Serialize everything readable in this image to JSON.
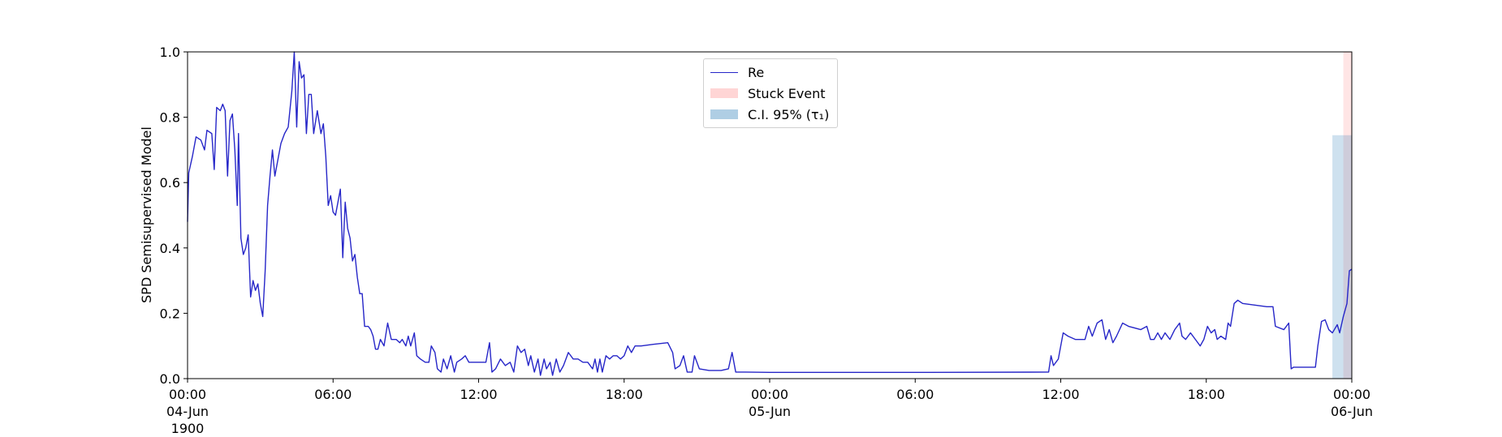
{
  "chart_data": {
    "type": "line",
    "ylabel": "SPD Semisupervised Model",
    "x": [
      "1900-06-04 00:00",
      "1900-06-04 00:03",
      "1900-06-04 00:12",
      "1900-06-04 00:21",
      "1900-06-04 00:33",
      "1900-06-04 00:42",
      "1900-06-04 00:48",
      "1900-06-04 01:00",
      "1900-06-04 01:06",
      "1900-06-04 01:12",
      "1900-06-04 01:21",
      "1900-06-04 01:27",
      "1900-06-04 01:33",
      "1900-06-04 01:39",
      "1900-06-04 01:45",
      "1900-06-04 01:51",
      "1900-06-04 01:57",
      "1900-06-04 02:03",
      "1900-06-04 02:06",
      "1900-06-04 02:12",
      "1900-06-04 02:18",
      "1900-06-04 02:24",
      "1900-06-04 02:30",
      "1900-06-04 02:36",
      "1900-06-04 02:42",
      "1900-06-04 02:48",
      "1900-06-04 02:54",
      "1900-06-04 03:00",
      "1900-06-04 03:06",
      "1900-06-04 03:12",
      "1900-06-04 03:18",
      "1900-06-04 03:24",
      "1900-06-04 03:30",
      "1900-06-04 03:36",
      "1900-06-04 03:42",
      "1900-06-04 03:51",
      "1900-06-04 04:00",
      "1900-06-04 04:09",
      "1900-06-04 04:18",
      "1900-06-04 04:24",
      "1900-06-04 04:30",
      "1900-06-04 04:36",
      "1900-06-04 04:42",
      "1900-06-04 04:48",
      "1900-06-04 04:54",
      "1900-06-04 05:00",
      "1900-06-04 05:06",
      "1900-06-04 05:12",
      "1900-06-04 05:21",
      "1900-06-04 05:30",
      "1900-06-04 05:36",
      "1900-06-04 05:42",
      "1900-06-04 05:48",
      "1900-06-04 05:54",
      "1900-06-04 06:00",
      "1900-06-04 06:06",
      "1900-06-04 06:12",
      "1900-06-04 06:18",
      "1900-06-04 06:24",
      "1900-06-04 06:30",
      "1900-06-04 06:36",
      "1900-06-04 06:42",
      "1900-06-04 06:48",
      "1900-06-04 06:54",
      "1900-06-04 07:00",
      "1900-06-04 07:06",
      "1900-06-04 07:12",
      "1900-06-04 07:18",
      "1900-06-04 07:27",
      "1900-06-04 07:33",
      "1900-06-04 07:39",
      "1900-06-04 07:45",
      "1900-06-04 07:51",
      "1900-06-04 07:57",
      "1900-06-04 08:06",
      "1900-06-04 08:15",
      "1900-06-04 08:24",
      "1900-06-04 08:36",
      "1900-06-04 08:45",
      "1900-06-04 08:51",
      "1900-06-04 09:00",
      "1900-06-04 09:06",
      "1900-06-04 09:12",
      "1900-06-04 09:21",
      "1900-06-04 09:27",
      "1900-06-04 09:36",
      "1900-06-04 09:48",
      "1900-06-04 09:57",
      "1900-06-04 10:03",
      "1900-06-04 10:12",
      "1900-06-04 10:18",
      "1900-06-04 10:27",
      "1900-06-04 10:33",
      "1900-06-04 10:42",
      "1900-06-04 10:51",
      "1900-06-04 11:00",
      "1900-06-04 11:06",
      "1900-06-04 11:18",
      "1900-06-04 11:27",
      "1900-06-04 11:36",
      "1900-06-04 12:00",
      "1900-06-04 12:18",
      "1900-06-04 12:27",
      "1900-06-04 12:33",
      "1900-06-04 12:42",
      "1900-06-04 12:54",
      "1900-06-04 13:06",
      "1900-06-04 13:18",
      "1900-06-04 13:27",
      "1900-06-04 13:36",
      "1900-06-04 13:45",
      "1900-06-04 13:54",
      "1900-06-04 14:03",
      "1900-06-04 14:09",
      "1900-06-04 14:18",
      "1900-06-04 14:27",
      "1900-06-04 14:33",
      "1900-06-04 14:42",
      "1900-06-04 14:48",
      "1900-06-04 14:57",
      "1900-06-04 15:03",
      "1900-06-04 15:12",
      "1900-06-04 15:21",
      "1900-06-04 15:30",
      "1900-06-04 15:42",
      "1900-06-04 15:54",
      "1900-06-04 16:06",
      "1900-06-04 16:18",
      "1900-06-04 16:30",
      "1900-06-04 16:42",
      "1900-06-04 16:48",
      "1900-06-04 16:54",
      "1900-06-04 17:00",
      "1900-06-04 17:06",
      "1900-06-04 17:15",
      "1900-06-04 17:24",
      "1900-06-04 17:33",
      "1900-06-04 17:42",
      "1900-06-04 17:51",
      "1900-06-04 18:00",
      "1900-06-04 18:09",
      "1900-06-04 18:18",
      "1900-06-04 18:27",
      "1900-06-04 18:42",
      "1900-06-04 19:12",
      "1900-06-04 19:48",
      "1900-06-04 20:00",
      "1900-06-04 20:06",
      "1900-06-04 20:18",
      "1900-06-04 20:27",
      "1900-06-04 20:36",
      "1900-06-04 20:48",
      "1900-06-04 20:54",
      "1900-06-04 21:06",
      "1900-06-04 21:30",
      "1900-06-04 22:00",
      "1900-06-04 22:18",
      "1900-06-04 22:27",
      "1900-06-04 22:36",
      "1900-06-04 23:00",
      "1900-06-05 00:00",
      "1900-06-05 06:00",
      "1900-06-05 11:30",
      "1900-06-05 11:36",
      "1900-06-05 11:42",
      "1900-06-05 11:54",
      "1900-06-05 12:06",
      "1900-06-05 12:18",
      "1900-06-05 12:36",
      "1900-06-05 13:00",
      "1900-06-05 13:09",
      "1900-06-05 13:18",
      "1900-06-05 13:30",
      "1900-06-05 13:42",
      "1900-06-05 13:51",
      "1900-06-05 14:00",
      "1900-06-05 14:09",
      "1900-06-05 14:18",
      "1900-06-05 14:33",
      "1900-06-05 14:48",
      "1900-06-05 15:18",
      "1900-06-05 15:33",
      "1900-06-05 15:42",
      "1900-06-05 15:51",
      "1900-06-05 16:00",
      "1900-06-05 16:09",
      "1900-06-05 16:18",
      "1900-06-05 16:30",
      "1900-06-05 16:42",
      "1900-06-05 16:54",
      "1900-06-05 17:00",
      "1900-06-05 17:09",
      "1900-06-05 17:21",
      "1900-06-05 17:33",
      "1900-06-05 17:45",
      "1900-06-05 17:54",
      "1900-06-05 18:03",
      "1900-06-05 18:12",
      "1900-06-05 18:21",
      "1900-06-05 18:27",
      "1900-06-05 18:36",
      "1900-06-05 18:48",
      "1900-06-05 18:54",
      "1900-06-05 19:00",
      "1900-06-05 19:09",
      "1900-06-05 19:18",
      "1900-06-05 19:30",
      "1900-06-05 20:00",
      "1900-06-05 20:30",
      "1900-06-05 20:45",
      "1900-06-05 20:51",
      "1900-06-05 21:12",
      "1900-06-05 21:24",
      "1900-06-05 21:30",
      "1900-06-05 21:36",
      "1900-06-05 22:30",
      "1900-06-05 22:36",
      "1900-06-05 22:45",
      "1900-06-05 22:54",
      "1900-06-05 23:03",
      "1900-06-05 23:12",
      "1900-06-05 23:24",
      "1900-06-05 23:30",
      "1900-06-05 23:39",
      "1900-06-05 23:48",
      "1900-06-05 23:54",
      "1900-06-06 00:00"
    ],
    "series": [
      {
        "name": "Re",
        "color": "#2626c8",
        "values": [
          0.48,
          0.63,
          0.68,
          0.74,
          0.73,
          0.7,
          0.76,
          0.75,
          0.64,
          0.83,
          0.82,
          0.84,
          0.82,
          0.62,
          0.79,
          0.81,
          0.7,
          0.53,
          0.75,
          0.43,
          0.38,
          0.4,
          0.44,
          0.25,
          0.3,
          0.27,
          0.29,
          0.23,
          0.19,
          0.33,
          0.53,
          0.62,
          0.7,
          0.62,
          0.66,
          0.72,
          0.75,
          0.77,
          0.88,
          1.0,
          0.77,
          0.97,
          0.92,
          0.93,
          0.75,
          0.87,
          0.87,
          0.75,
          0.82,
          0.75,
          0.78,
          0.68,
          0.53,
          0.56,
          0.51,
          0.5,
          0.54,
          0.58,
          0.37,
          0.54,
          0.46,
          0.43,
          0.36,
          0.38,
          0.31,
          0.26,
          0.26,
          0.16,
          0.16,
          0.15,
          0.13,
          0.09,
          0.09,
          0.12,
          0.1,
          0.17,
          0.12,
          0.12,
          0.11,
          0.12,
          0.1,
          0.13,
          0.1,
          0.14,
          0.07,
          0.06,
          0.05,
          0.05,
          0.1,
          0.08,
          0.03,
          0.02,
          0.06,
          0.03,
          0.07,
          0.02,
          0.05,
          0.06,
          0.07,
          0.05,
          0.05,
          0.05,
          0.11,
          0.02,
          0.03,
          0.06,
          0.04,
          0.05,
          0.02,
          0.1,
          0.08,
          0.09,
          0.04,
          0.07,
          0.02,
          0.06,
          0.01,
          0.06,
          0.03,
          0.05,
          0.01,
          0.06,
          0.02,
          0.04,
          0.08,
          0.06,
          0.06,
          0.05,
          0.05,
          0.03,
          0.06,
          0.02,
          0.06,
          0.02,
          0.07,
          0.06,
          0.07,
          0.07,
          0.06,
          0.07,
          0.1,
          0.08,
          0.1,
          0.1,
          0.105,
          0.11,
          0.08,
          0.03,
          0.04,
          0.07,
          0.02,
          0.02,
          0.07,
          0.03,
          0.025,
          0.025,
          0.03,
          0.08,
          0.02,
          0.02,
          0.019,
          0.019,
          0.02,
          0.07,
          0.04,
          0.06,
          0.14,
          0.13,
          0.12,
          0.12,
          0.16,
          0.13,
          0.17,
          0.18,
          0.12,
          0.15,
          0.11,
          0.13,
          0.17,
          0.16,
          0.15,
          0.16,
          0.12,
          0.12,
          0.14,
          0.12,
          0.14,
          0.12,
          0.15,
          0.17,
          0.13,
          0.12,
          0.14,
          0.12,
          0.1,
          0.12,
          0.16,
          0.14,
          0.15,
          0.12,
          0.13,
          0.12,
          0.17,
          0.16,
          0.23,
          0.24,
          0.23,
          0.225,
          0.22,
          0.22,
          0.16,
          0.15,
          0.17,
          0.03,
          0.035,
          0.035,
          0.1,
          0.175,
          0.18,
          0.15,
          0.14,
          0.165,
          0.14,
          0.19,
          0.23,
          0.33,
          0.335
        ]
      }
    ],
    "spans": [
      {
        "name": "Stuck Event",
        "color": "#ff0000",
        "opacity": 0.1,
        "x": [
          "1900-06-05 23:39",
          "1900-06-06 00:00"
        ],
        "y": [
          0.0,
          1.0
        ]
      },
      {
        "name": "C.I. 95% (τ₁)",
        "color": "#1f77b4",
        "opacity": 0.22,
        "x": [
          "1900-06-05 23:12",
          "1900-06-06 00:00"
        ],
        "y": [
          0.0,
          0.745
        ]
      }
    ],
    "xlim": [
      "1900-06-04 00:00",
      "1900-06-06 00:00"
    ],
    "xticks": [
      {
        "value": "1900-06-04 00:00",
        "label": "00:00\n04-Jun\n1900"
      },
      {
        "value": "1900-06-04 06:00",
        "label": "06:00"
      },
      {
        "value": "1900-06-04 12:00",
        "label": "12:00"
      },
      {
        "value": "1900-06-04 18:00",
        "label": "18:00"
      },
      {
        "value": "1900-06-05 00:00",
        "label": "00:00\n05-Jun"
      },
      {
        "value": "1900-06-05 06:00",
        "label": "06:00"
      },
      {
        "value": "1900-06-05 12:00",
        "label": "12:00"
      },
      {
        "value": "1900-06-05 18:00",
        "label": "18:00"
      },
      {
        "value": "1900-06-06 00:00",
        "label": "00:00\n06-Jun"
      }
    ],
    "ylim": [
      0,
      1
    ],
    "yticks": [
      {
        "value": 0,
        "label": "0.0"
      },
      {
        "value": 0.2,
        "label": "0.2"
      },
      {
        "value": 0.4,
        "label": "0.4"
      },
      {
        "value": 0.6,
        "label": "0.6"
      },
      {
        "value": 0.8,
        "label": "0.8"
      },
      {
        "value": 1,
        "label": "1.0"
      }
    ],
    "legend": "upper center"
  }
}
